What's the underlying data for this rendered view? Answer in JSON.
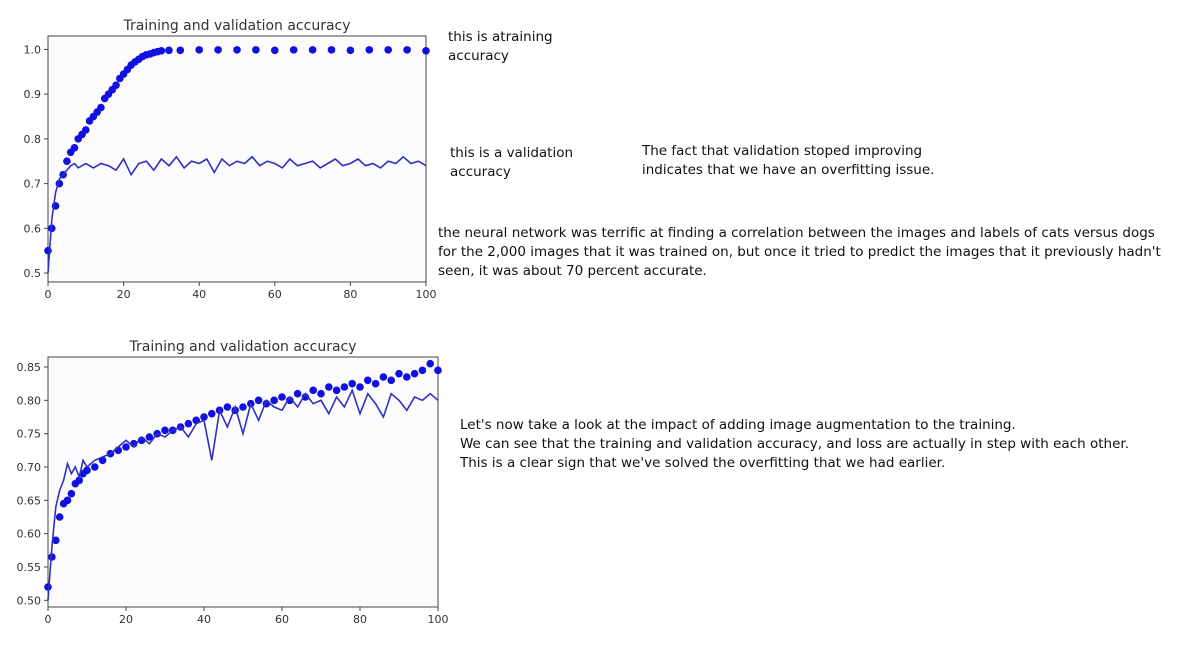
{
  "notes": {
    "training_accuracy": "this is atraining accuracy",
    "validation_accuracy": "this is a validation accuracy",
    "overfitting": "The fact that validation stoped improving indicates that we have an overfitting issue.",
    "neural_network": "the neural network was terrific at finding a correlation between the images and labels of cats versus dogs for the 2,000 images that it was trained on, but once it tried to predict the images that it previously hadn't seen, it was about 70 percent accurate.",
    "augmentation_1": "Let's now take a look at the impact of adding image augmentation to the training.",
    "augmentation_2": "We can see that the training and validation accuracy, and loss are actually in step with each other.",
    "augmentation_3": "This is a clear sign that we've solved the overfitting that we had earlier."
  },
  "colors": {
    "training": "#1010e0",
    "validation": "#3030c0",
    "background": "#fcfcff"
  },
  "chart_data": [
    {
      "type": "line",
      "title": "Training and validation accuracy",
      "xlim": [
        0,
        100
      ],
      "ylim": [
        0.48,
        1.03
      ],
      "xticks": [
        "0",
        "20",
        "40",
        "60",
        "80",
        "100"
      ],
      "yticks": [
        "0.5",
        "0.6",
        "0.7",
        "0.8",
        "0.9",
        "1.0"
      ],
      "series": [
        {
          "style": "dots",
          "x": [
            0,
            1,
            2,
            3,
            4,
            5,
            6,
            7,
            8,
            9,
            10,
            11,
            12,
            13,
            14,
            15,
            16,
            17,
            18,
            19,
            20,
            21,
            22,
            23,
            24,
            25,
            26,
            27,
            28,
            29,
            30,
            32,
            35,
            40,
            45,
            50,
            55,
            60,
            65,
            70,
            75,
            80,
            85,
            90,
            95,
            100
          ],
          "values": [
            0.55,
            0.6,
            0.65,
            0.7,
            0.72,
            0.75,
            0.77,
            0.78,
            0.8,
            0.81,
            0.82,
            0.84,
            0.85,
            0.86,
            0.87,
            0.89,
            0.9,
            0.91,
            0.92,
            0.935,
            0.945,
            0.955,
            0.965,
            0.972,
            0.978,
            0.984,
            0.988,
            0.99,
            0.993,
            0.995,
            0.997,
            0.998,
            0.998,
            0.999,
            0.999,
            0.999,
            0.999,
            0.998,
            0.999,
            0.999,
            0.999,
            0.998,
            0.999,
            0.999,
            0.999,
            0.997
          ]
        },
        {
          "style": "line",
          "x": [
            0,
            1,
            2,
            3,
            4,
            5,
            6,
            7,
            8,
            9,
            10,
            12,
            14,
            16,
            18,
            20,
            22,
            24,
            26,
            28,
            30,
            32,
            34,
            36,
            38,
            40,
            42,
            44,
            46,
            48,
            50,
            52,
            54,
            56,
            58,
            60,
            62,
            64,
            66,
            68,
            70,
            72,
            74,
            76,
            78,
            80,
            82,
            84,
            86,
            88,
            90,
            92,
            94,
            96,
            98,
            100
          ],
          "values": [
            0.5,
            0.62,
            0.68,
            0.71,
            0.72,
            0.73,
            0.74,
            0.745,
            0.735,
            0.74,
            0.745,
            0.735,
            0.745,
            0.74,
            0.73,
            0.755,
            0.72,
            0.745,
            0.75,
            0.73,
            0.755,
            0.74,
            0.76,
            0.735,
            0.75,
            0.745,
            0.755,
            0.725,
            0.755,
            0.74,
            0.75,
            0.745,
            0.76,
            0.74,
            0.75,
            0.745,
            0.735,
            0.755,
            0.74,
            0.745,
            0.75,
            0.735,
            0.745,
            0.755,
            0.74,
            0.745,
            0.755,
            0.74,
            0.745,
            0.735,
            0.75,
            0.745,
            0.76,
            0.745,
            0.75,
            0.74
          ]
        }
      ]
    },
    {
      "type": "line",
      "title": "Training and validation accuracy",
      "xlim": [
        0,
        100
      ],
      "ylim": [
        0.49,
        0.865
      ],
      "xticks": [
        "0",
        "20",
        "40",
        "60",
        "80",
        "100"
      ],
      "yticks": [
        "0.50",
        "0.55",
        "0.60",
        "0.65",
        "0.70",
        "0.75",
        "0.80",
        "0.85"
      ],
      "series": [
        {
          "style": "dots",
          "x": [
            0,
            1,
            2,
            3,
            4,
            5,
            6,
            7,
            8,
            9,
            10,
            12,
            14,
            16,
            18,
            20,
            22,
            24,
            26,
            28,
            30,
            32,
            34,
            36,
            38,
            40,
            42,
            44,
            46,
            48,
            50,
            52,
            54,
            56,
            58,
            60,
            62,
            64,
            66,
            68,
            70,
            72,
            74,
            76,
            78,
            80,
            82,
            84,
            86,
            88,
            90,
            92,
            94,
            96,
            98,
            100
          ],
          "values": [
            0.52,
            0.565,
            0.59,
            0.625,
            0.645,
            0.65,
            0.66,
            0.675,
            0.68,
            0.69,
            0.695,
            0.7,
            0.71,
            0.72,
            0.725,
            0.73,
            0.735,
            0.74,
            0.745,
            0.75,
            0.755,
            0.755,
            0.76,
            0.765,
            0.77,
            0.775,
            0.78,
            0.785,
            0.79,
            0.785,
            0.79,
            0.795,
            0.8,
            0.795,
            0.8,
            0.805,
            0.8,
            0.81,
            0.805,
            0.815,
            0.81,
            0.82,
            0.815,
            0.82,
            0.825,
            0.82,
            0.83,
            0.825,
            0.835,
            0.83,
            0.84,
            0.835,
            0.84,
            0.845,
            0.855,
            0.845
          ]
        },
        {
          "style": "line",
          "x": [
            0,
            1,
            2,
            3,
            4,
            5,
            6,
            7,
            8,
            9,
            10,
            12,
            14,
            16,
            18,
            20,
            22,
            24,
            26,
            28,
            30,
            32,
            34,
            36,
            38,
            40,
            42,
            44,
            46,
            48,
            50,
            52,
            54,
            56,
            58,
            60,
            62,
            64,
            66,
            68,
            70,
            72,
            74,
            76,
            78,
            80,
            82,
            84,
            86,
            88,
            90,
            92,
            94,
            96,
            98,
            100
          ],
          "values": [
            0.5,
            0.58,
            0.64,
            0.665,
            0.68,
            0.705,
            0.69,
            0.7,
            0.685,
            0.71,
            0.7,
            0.71,
            0.715,
            0.72,
            0.73,
            0.74,
            0.73,
            0.745,
            0.735,
            0.75,
            0.745,
            0.755,
            0.76,
            0.745,
            0.765,
            0.77,
            0.71,
            0.785,
            0.76,
            0.79,
            0.75,
            0.795,
            0.77,
            0.8,
            0.79,
            0.785,
            0.805,
            0.79,
            0.81,
            0.795,
            0.8,
            0.78,
            0.805,
            0.79,
            0.815,
            0.78,
            0.81,
            0.795,
            0.775,
            0.81,
            0.8,
            0.785,
            0.805,
            0.8,
            0.81,
            0.8
          ]
        }
      ]
    }
  ]
}
